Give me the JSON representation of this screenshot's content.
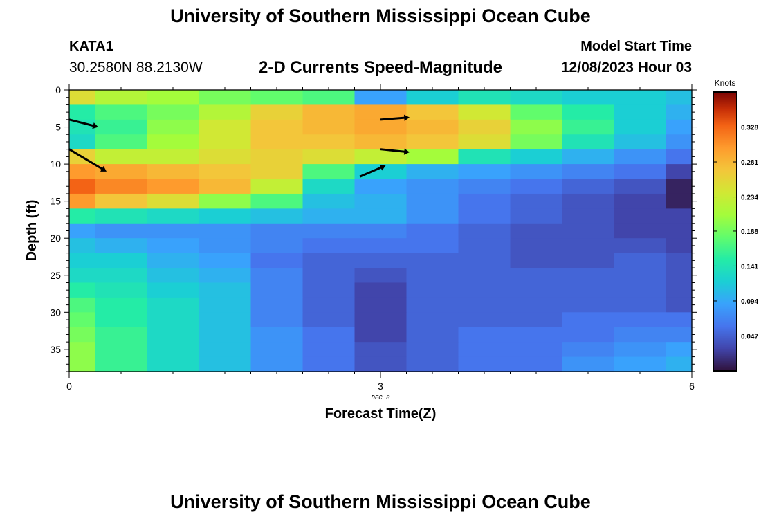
{
  "header": {
    "title": "University of Southern Mississippi Ocean Cube",
    "station_id": "KATA1",
    "station_coords": "30.2580N  88.2130W",
    "subtitle": "2-D Currents Speed-Magnitude",
    "model_start_label": "Model Start Time",
    "model_start_value": "12/08/2023 Hour 03"
  },
  "footer": {
    "title": "University of Southern Mississippi Ocean Cube"
  },
  "chart_data": {
    "type": "heatmap",
    "title": "2-D Currents Speed-Magnitude",
    "xlabel": "Forecast Time(Z)",
    "ylabel": "Depth (ft)",
    "x_date_label": "DEC 8",
    "xlim": [
      0,
      6
    ],
    "ylim": [
      38,
      0
    ],
    "x_ticks": [
      0,
      3,
      6
    ],
    "y_ticks": [
      0,
      5,
      10,
      15,
      20,
      25,
      30,
      35
    ],
    "colorbar": {
      "title": "Knots",
      "ticks": [
        "0.047",
        "0.094",
        "0.141",
        "0.188",
        "0.234",
        "0.281",
        "0.328"
      ],
      "range": [
        0.0,
        0.375
      ]
    },
    "x_bins": [
      0,
      0.25,
      0.75,
      1.25,
      1.75,
      2.25,
      2.75,
      3.25,
      3.75,
      4.25,
      4.75,
      5.25,
      5.75,
      6
    ],
    "depth_bins": [
      0,
      2,
      4,
      6,
      8,
      10,
      12,
      14,
      16,
      18,
      20,
      22,
      24,
      26,
      28,
      30,
      32,
      34,
      36,
      38
    ],
    "speed_knots": [
      [
        0.25,
        0.22,
        0.21,
        0.19,
        0.18,
        0.17,
        0.09,
        0.12,
        0.14,
        0.13,
        0.12,
        0.12,
        0.11
      ],
      [
        0.15,
        0.17,
        0.19,
        0.22,
        0.26,
        0.28,
        0.29,
        0.27,
        0.24,
        0.18,
        0.15,
        0.12,
        0.1
      ],
      [
        0.14,
        0.16,
        0.2,
        0.24,
        0.27,
        0.28,
        0.29,
        0.28,
        0.26,
        0.2,
        0.16,
        0.12,
        0.09
      ],
      [
        0.13,
        0.17,
        0.21,
        0.24,
        0.27,
        0.27,
        0.28,
        0.27,
        0.25,
        0.19,
        0.14,
        0.11,
        0.08
      ],
      [
        0.26,
        0.23,
        0.23,
        0.25,
        0.26,
        0.25,
        0.23,
        0.21,
        0.14,
        0.12,
        0.1,
        0.08,
        0.06
      ],
      [
        0.3,
        0.29,
        0.28,
        0.27,
        0.26,
        0.17,
        0.12,
        0.1,
        0.09,
        0.08,
        0.07,
        0.06,
        0.03
      ],
      [
        0.33,
        0.31,
        0.3,
        0.28,
        0.23,
        0.13,
        0.09,
        0.08,
        0.07,
        0.06,
        0.05,
        0.04,
        0.01
      ],
      [
        0.3,
        0.27,
        0.25,
        0.2,
        0.17,
        0.11,
        0.1,
        0.08,
        0.06,
        0.05,
        0.04,
        0.03,
        0.01
      ],
      [
        0.15,
        0.14,
        0.13,
        0.12,
        0.11,
        0.1,
        0.1,
        0.08,
        0.06,
        0.05,
        0.04,
        0.03,
        0.03
      ],
      [
        0.09,
        0.08,
        0.08,
        0.08,
        0.07,
        0.07,
        0.07,
        0.06,
        0.05,
        0.04,
        0.04,
        0.03,
        0.03
      ],
      [
        0.11,
        0.1,
        0.09,
        0.08,
        0.07,
        0.06,
        0.06,
        0.06,
        0.05,
        0.04,
        0.04,
        0.04,
        0.03
      ],
      [
        0.12,
        0.12,
        0.1,
        0.09,
        0.06,
        0.05,
        0.05,
        0.05,
        0.05,
        0.04,
        0.04,
        0.05,
        0.04
      ],
      [
        0.13,
        0.13,
        0.11,
        0.1,
        0.07,
        0.05,
        0.04,
        0.05,
        0.05,
        0.05,
        0.05,
        0.05,
        0.04
      ],
      [
        0.15,
        0.14,
        0.12,
        0.11,
        0.07,
        0.05,
        0.03,
        0.05,
        0.05,
        0.05,
        0.05,
        0.05,
        0.04
      ],
      [
        0.17,
        0.15,
        0.13,
        0.11,
        0.07,
        0.05,
        0.03,
        0.05,
        0.05,
        0.05,
        0.05,
        0.05,
        0.04
      ],
      [
        0.18,
        0.15,
        0.13,
        0.11,
        0.07,
        0.05,
        0.03,
        0.05,
        0.05,
        0.05,
        0.06,
        0.06,
        0.06
      ],
      [
        0.19,
        0.16,
        0.13,
        0.11,
        0.08,
        0.06,
        0.03,
        0.05,
        0.06,
        0.06,
        0.06,
        0.07,
        0.07
      ],
      [
        0.2,
        0.16,
        0.13,
        0.11,
        0.08,
        0.06,
        0.04,
        0.05,
        0.06,
        0.06,
        0.07,
        0.08,
        0.09
      ],
      [
        0.2,
        0.16,
        0.13,
        0.11,
        0.08,
        0.06,
        0.04,
        0.05,
        0.06,
        0.06,
        0.08,
        0.09,
        0.1
      ]
    ],
    "vectors": [
      {
        "t": 0.0,
        "depth": 4.0,
        "u": 0.28,
        "v": -1.0,
        "speed": 0.14
      },
      {
        "t": 0.0,
        "depth": 8.0,
        "u": 0.36,
        "v": -3.0,
        "speed": 0.3
      },
      {
        "t": 3.0,
        "depth": 4.0,
        "u": 0.28,
        "v": 0.3,
        "speed": 0.28
      },
      {
        "t": 3.0,
        "depth": 8.0,
        "u": 0.28,
        "v": -0.4,
        "speed": 0.27
      },
      {
        "t": 2.8,
        "depth": 11.7,
        "u": 0.25,
        "v": 1.5,
        "speed": 0.12
      }
    ]
  }
}
